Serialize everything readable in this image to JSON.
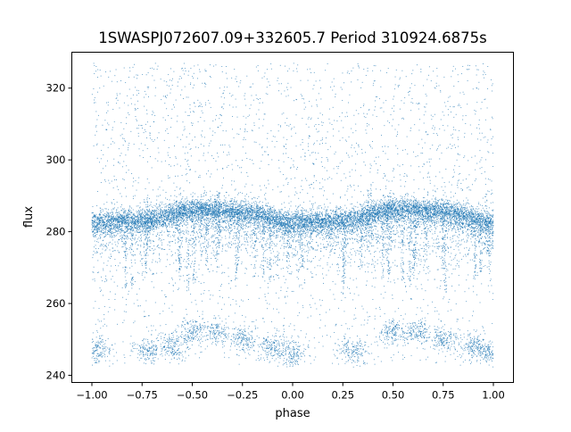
{
  "chart_data": {
    "type": "scatter",
    "title": "1SWASPJ072607.09+332605.7 Period 310924.6875s",
    "xlabel": "phase",
    "ylabel": "flux",
    "xlim": [
      -1.1,
      1.1
    ],
    "ylim": [
      238,
      330
    ],
    "x_ticks": [
      -1.0,
      -0.75,
      -0.5,
      -0.25,
      0.0,
      0.25,
      0.5,
      0.75,
      1.0
    ],
    "x_tick_labels": [
      "−1.00",
      "−0.75",
      "−0.50",
      "−0.25",
      "0.00",
      "0.25",
      "0.50",
      "0.75",
      "1.00"
    ],
    "y_ticks": [
      240,
      260,
      280,
      300,
      320
    ],
    "y_tick_labels": [
      "240",
      "260",
      "280",
      "300",
      "320"
    ],
    "grid": false,
    "legend": "none",
    "marker_color": "#1f77b4",
    "series": [
      {
        "x_range": [
          -1.0,
          1.0
        ],
        "trend_x": [
          -1.0,
          -0.75,
          -0.5,
          -0.25,
          0.0,
          0.25,
          0.5,
          0.75,
          1.0
        ],
        "trend_y": [
          282.5,
          283,
          286,
          285.5,
          282.5,
          283,
          286,
          285.5,
          282.5
        ],
        "scatter_spread": 1.6,
        "outlier_clumps": [
          {
            "x_center": -0.97,
            "y_center": 247
          },
          {
            "x_center": -0.72,
            "y_center": 247
          },
          {
            "x_center": -0.6,
            "y_center": 248
          },
          {
            "x_center": -0.5,
            "y_center": 252
          },
          {
            "x_center": -0.38,
            "y_center": 252
          },
          {
            "x_center": -0.25,
            "y_center": 250
          },
          {
            "x_center": -0.1,
            "y_center": 248
          },
          {
            "x_center": 0.0,
            "y_center": 246
          },
          {
            "x_center": 0.3,
            "y_center": 247
          },
          {
            "x_center": 0.5,
            "y_center": 252
          },
          {
            "x_center": 0.62,
            "y_center": 252
          },
          {
            "x_center": 0.75,
            "y_center": 250
          },
          {
            "x_center": 0.9,
            "y_center": 248
          },
          {
            "x_center": 0.98,
            "y_center": 246
          }
        ]
      }
    ]
  }
}
